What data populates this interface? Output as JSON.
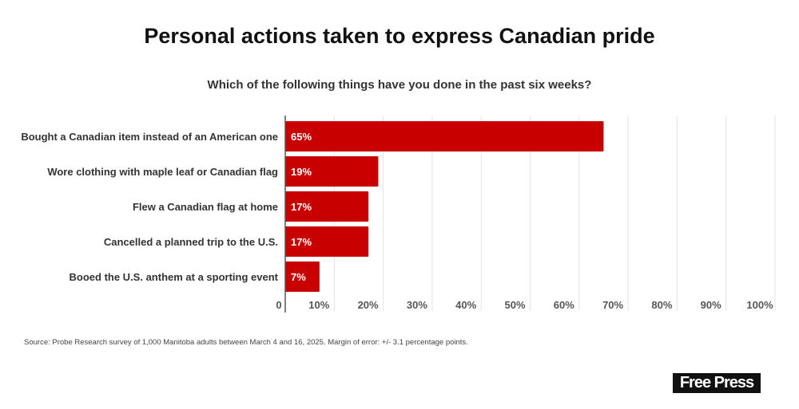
{
  "chart_data": {
    "type": "bar",
    "orientation": "horizontal",
    "title": "Personal actions taken to express Canadian pride",
    "subtitle": "Which of the following things have you done in the past six weeks?",
    "categories": [
      "Bought a Canadian item instead of an American one",
      "Wore clothing with maple leaf or Canadian flag",
      "Flew a Canadian flag at home",
      "Cancelled a planned trip to the U.S.",
      "Booed the U.S. anthem at a sporting event"
    ],
    "values": [
      65,
      19,
      17,
      17,
      7
    ],
    "data_labels": [
      "65%",
      "19%",
      "17%",
      "17%",
      "7%"
    ],
    "xlim": [
      0,
      100
    ],
    "xticks": [
      "0",
      "10%",
      "20%",
      "30%",
      "40%",
      "50%",
      "60%",
      "70%",
      "80%",
      "90%",
      "100%"
    ],
    "grid": true,
    "bar_color": "#c80000"
  },
  "source": "Source: Probe Research survey of 1,000 Manitoba adults between March 4 and 16, 2025. Margin of error: +/- 3.1 percentage points.",
  "logo": "Free Press"
}
